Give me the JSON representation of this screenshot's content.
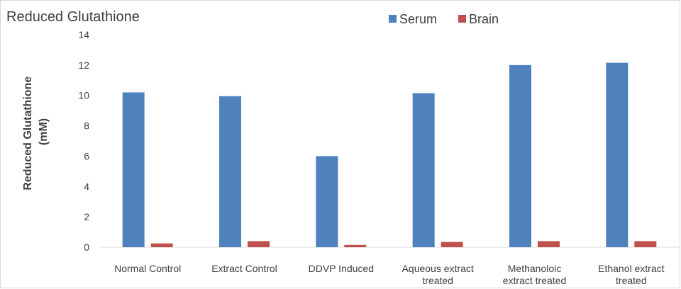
{
  "chart_data": {
    "type": "bar",
    "title": "Reduced Glutathione",
    "ylabel_lines": [
      "Reduced Glutathione",
      "(mM)"
    ],
    "xlabel": "",
    "categories": [
      [
        "Normal Control"
      ],
      [
        "Extract Control"
      ],
      [
        "DDVP Induced"
      ],
      [
        "Aqueous extract",
        "treated"
      ],
      [
        "Methanoloic",
        "extract treated"
      ],
      [
        "Ethanol extract",
        "treated"
      ]
    ],
    "series": [
      {
        "name": "Serum",
        "color": "#4f81bd",
        "values": [
          10.2,
          9.95,
          6.0,
          10.15,
          12.0,
          12.15
        ]
      },
      {
        "name": "Brain",
        "color": "#c0504d",
        "values": [
          0.25,
          0.4,
          0.15,
          0.35,
          0.4,
          0.4
        ]
      }
    ],
    "ylim": [
      0,
      14
    ],
    "yticks": [
      0,
      2,
      4,
      6,
      8,
      10,
      12,
      14
    ],
    "legend_position": "top-right",
    "grid": false
  }
}
